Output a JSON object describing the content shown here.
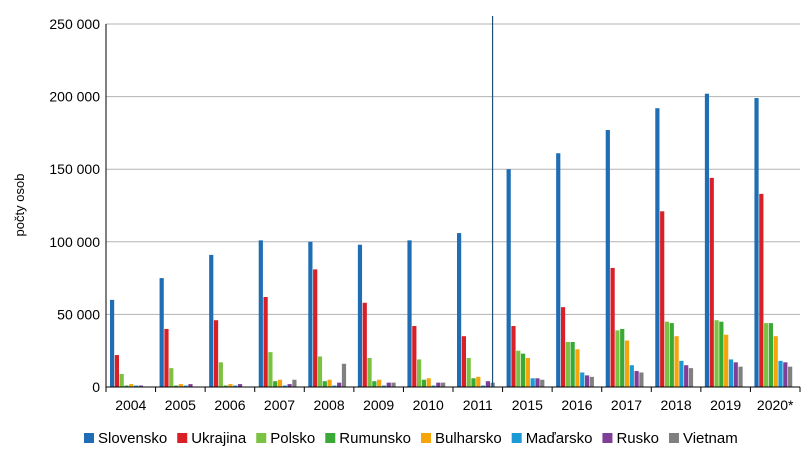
{
  "chart_data": {
    "type": "bar",
    "title": "",
    "xlabel": "",
    "ylabel": "počty osob",
    "ylim": [
      0,
      250000
    ],
    "yticks": [
      0,
      50000,
      100000,
      150000,
      200000,
      250000
    ],
    "ytick_labels": [
      "0",
      "50 000",
      "100 000",
      "150 000",
      "200 000",
      "250 000"
    ],
    "grid": true,
    "legend_position": "bottom",
    "categories": [
      "2004",
      "2005",
      "2006",
      "2007",
      "2008",
      "2009",
      "2010",
      "2011",
      "2015",
      "2016",
      "2017",
      "2018",
      "2019",
      "2020*"
    ],
    "series": [
      {
        "name": "Slovensko",
        "color": "#1f6eb5",
        "values": [
          60000,
          75000,
          91000,
          101000,
          100000,
          98000,
          101000,
          106000,
          150000,
          161000,
          177000,
          192000,
          202000,
          199000
        ]
      },
      {
        "name": "Ukrajina",
        "color": "#d92027",
        "values": [
          22000,
          40000,
          46000,
          62000,
          81000,
          58000,
          42000,
          35000,
          42000,
          55000,
          82000,
          121000,
          144000,
          133000
        ]
      },
      {
        "name": "Polsko",
        "color": "#7cc242",
        "values": [
          9000,
          13000,
          17000,
          24000,
          21000,
          20000,
          19000,
          20000,
          25000,
          31000,
          39000,
          45000,
          46000,
          44000
        ]
      },
      {
        "name": "Rumunsko",
        "color": "#3aa935",
        "values": [
          1000,
          1000,
          1000,
          4000,
          4000,
          4000,
          5000,
          6000,
          23000,
          31000,
          40000,
          44000,
          45000,
          44000
        ]
      },
      {
        "name": "Bulharsko",
        "color": "#f5a40a",
        "values": [
          2000,
          2000,
          2000,
          5000,
          5000,
          5000,
          6000,
          7000,
          20000,
          26000,
          32000,
          35000,
          36000,
          35000
        ]
      },
      {
        "name": "Maďarsko",
        "color": "#1c9ad6",
        "values": [
          1000,
          1000,
          1000,
          1000,
          1000,
          1000,
          1000,
          1000,
          6000,
          10000,
          15000,
          18000,
          19000,
          18000
        ]
      },
      {
        "name": "Rusko",
        "color": "#7f3f98",
        "values": [
          1000,
          2000,
          2000,
          2000,
          3000,
          3000,
          3000,
          4000,
          6000,
          8000,
          11000,
          15000,
          17000,
          17000
        ]
      },
      {
        "name": "Vietnam",
        "color": "#808080",
        "values": [
          0,
          0,
          0,
          5000,
          16000,
          3000,
          3000,
          3000,
          5000,
          7000,
          10000,
          13000,
          14000,
          14000
        ]
      }
    ],
    "annotations": [
      {
        "type": "vertical-divider",
        "between": [
          "2011",
          "2015"
        ],
        "color": "#1f4e79"
      }
    ]
  }
}
